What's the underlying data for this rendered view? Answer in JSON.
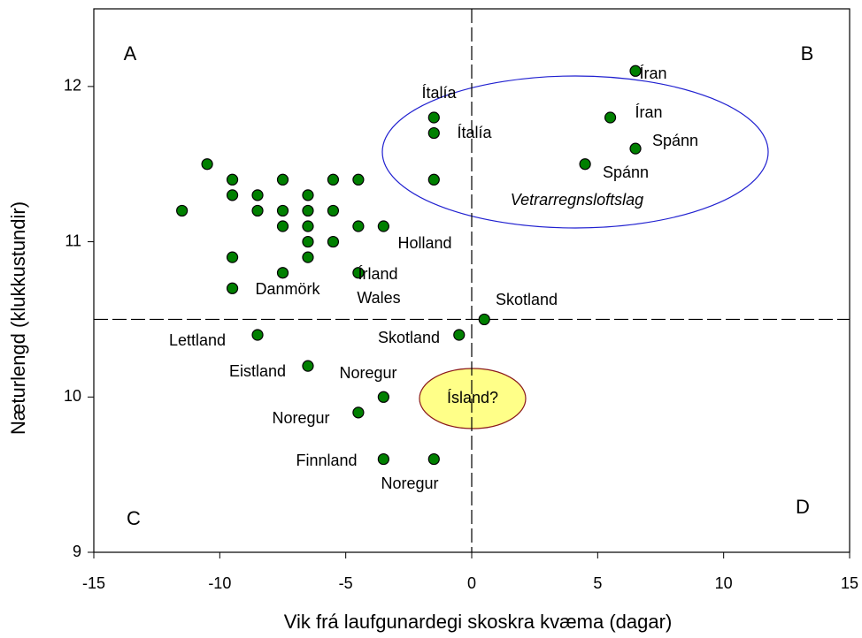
{
  "chart_data": {
    "type": "scatter",
    "xlabel": "Vik frá laufgunardegi skoskra kvæma (dagar)",
    "ylabel": "Næturlengd (klukkustundir)",
    "xlim": [
      -15,
      15
    ],
    "ylim": [
      9,
      12.5
    ],
    "xticks": [
      -15,
      -10,
      -5,
      0,
      5,
      10,
      15
    ],
    "yticks": [
      9,
      10,
      11,
      12
    ],
    "vline": 0,
    "hline": 10.5,
    "color": "#008000",
    "x": [
      -11.5,
      -10.5,
      -9.5,
      -9.5,
      -8.5,
      -8.5,
      -7.5,
      -7.5,
      -7.5,
      -6.5,
      -6.5,
      -6.5,
      -6.5,
      -5.5,
      -5.5,
      -5.5,
      -4.5,
      -4.5,
      -3.5,
      -9.5,
      -6.5,
      -7.5,
      -4.5,
      -9.5,
      -1.5,
      -1.5,
      -1.5,
      6.5,
      5.5,
      6.5,
      4.5,
      0.5,
      -0.5,
      -8.5,
      -6.5,
      -3.5,
      -4.5,
      -3.5,
      -1.5
    ],
    "values": [
      11.2,
      11.5,
      11.4,
      11.3,
      11.3,
      11.2,
      11.4,
      11.2,
      11.1,
      11.3,
      11.2,
      11.1,
      11.0,
      11.4,
      11.2,
      11.0,
      11.4,
      11.1,
      11.1,
      10.9,
      10.9,
      10.8,
      10.8,
      10.7,
      11.8,
      11.7,
      11.4,
      12.1,
      11.8,
      11.6,
      11.5,
      10.5,
      10.4,
      10.4,
      10.2,
      10.0,
      9.9,
      9.6,
      9.6
    ],
    "annotations": [
      "A",
      "B",
      "C",
      "D",
      "Ítalía",
      "Ítalía",
      "Íran",
      "Íran",
      "Spánn",
      "Spánn",
      "Vetrarregnsloftslag",
      "Holland",
      "Írland",
      "Wales",
      "Danmörk",
      "Skotland",
      "Skotland",
      "Lettland",
      "Eistland",
      "Noregur",
      "Noregur",
      "Noregur",
      "Finnland",
      "Ísland?"
    ]
  }
}
